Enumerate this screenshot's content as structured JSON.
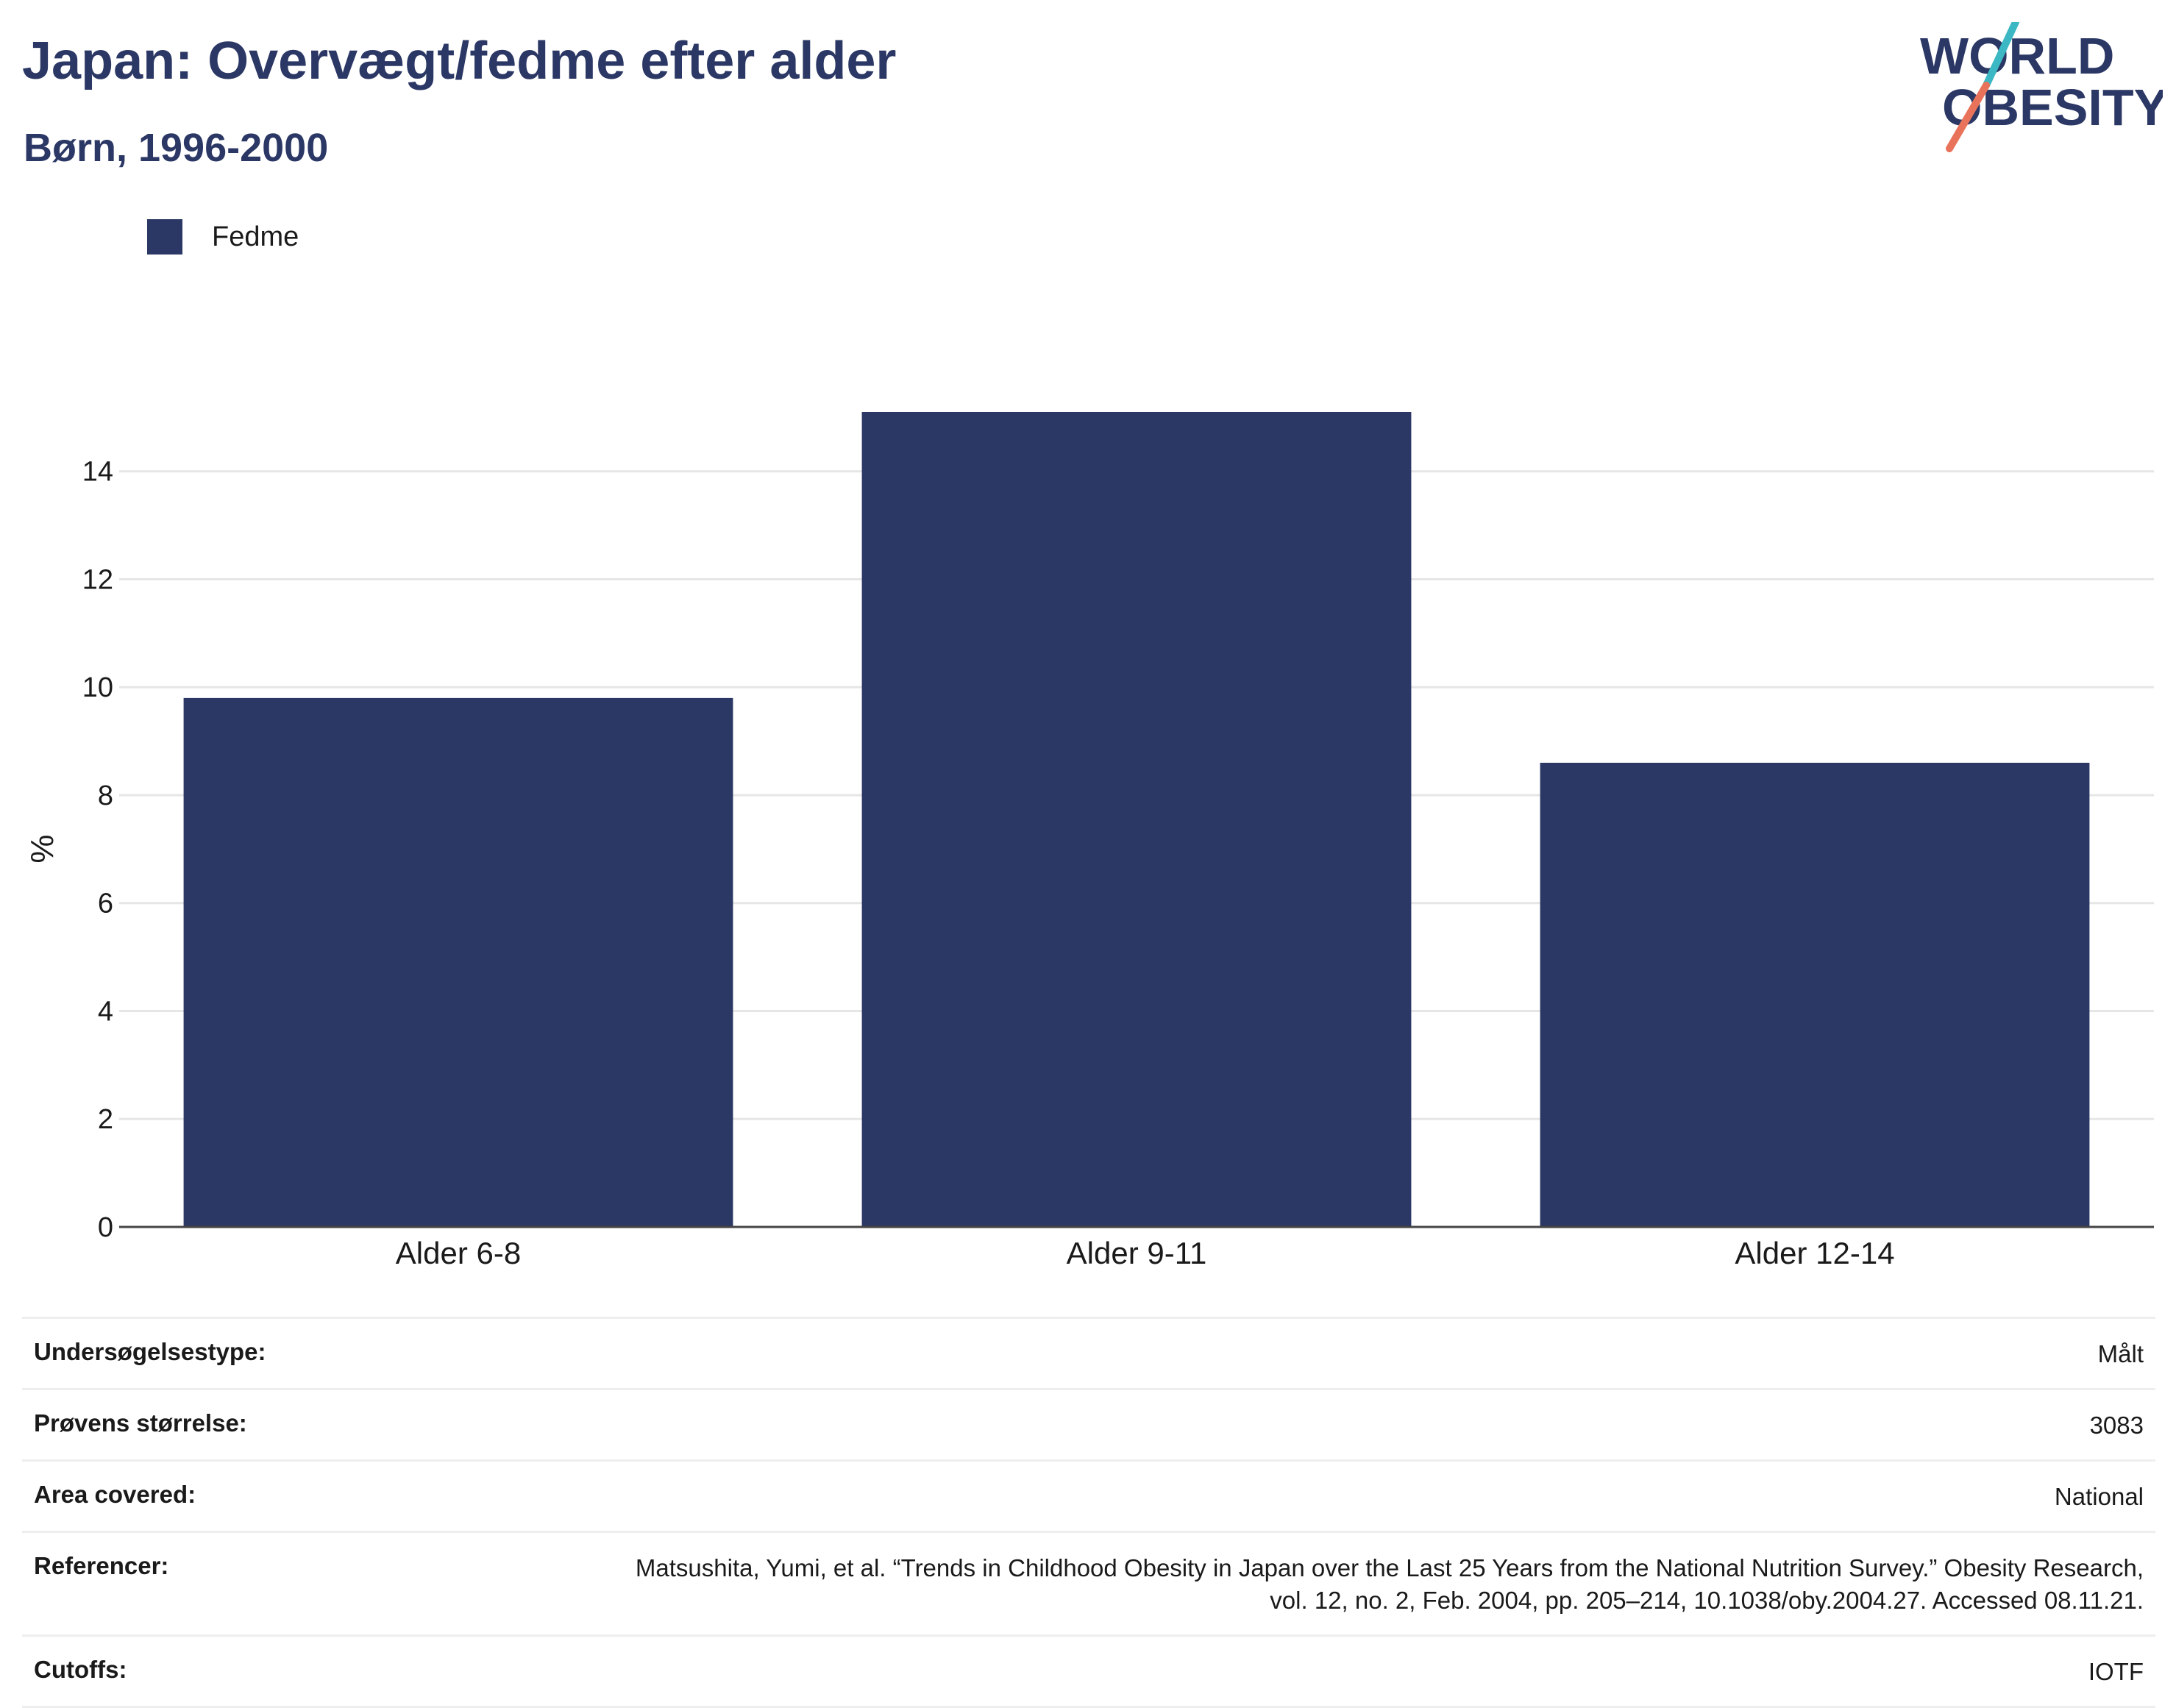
{
  "header": {
    "title": "Japan: Overvægt/fedme efter alder",
    "subtitle": "Børn, 1996-2000"
  },
  "logo": {
    "line1": "WORLD",
    "line2": "OBESITY",
    "colors": {
      "text": "#2b3764",
      "slash_teal": "#3bb8c3",
      "slash_coral": "#e8735a"
    }
  },
  "legend": {
    "label": "Fedme",
    "color": "#2b3764"
  },
  "chart_data": {
    "type": "bar",
    "categories": [
      "Alder 6-8",
      "Alder 9-11",
      "Alder 12-14"
    ],
    "series": [
      {
        "name": "Fedme",
        "values": [
          9.8,
          15.1,
          8.6
        ],
        "color": "#2b3764"
      }
    ],
    "ylabel": "%",
    "ylim": [
      0,
      15.1
    ],
    "yticks": [
      0,
      2,
      4,
      6,
      8,
      10,
      12,
      14
    ],
    "grid": true,
    "legend_position": "top-left"
  },
  "meta": [
    {
      "key": "Undersøgelsestype:",
      "value": "Målt"
    },
    {
      "key": "Prøvens størrelse:",
      "value": "3083"
    },
    {
      "key": "Area covered:",
      "value": "National"
    },
    {
      "key": "Referencer:",
      "value": "Matsushita, Yumi, et al. “Trends in Childhood Obesity in Japan over the Last 25 Years from the National Nutrition Survey.” Obesity Research, vol. 12, no. 2, Feb. 2004, pp. 205–214, 10.1038/oby.2004.27. Accessed 08.11.21."
    },
    {
      "key": "Cutoffs:",
      "value": "IOTF"
    }
  ]
}
